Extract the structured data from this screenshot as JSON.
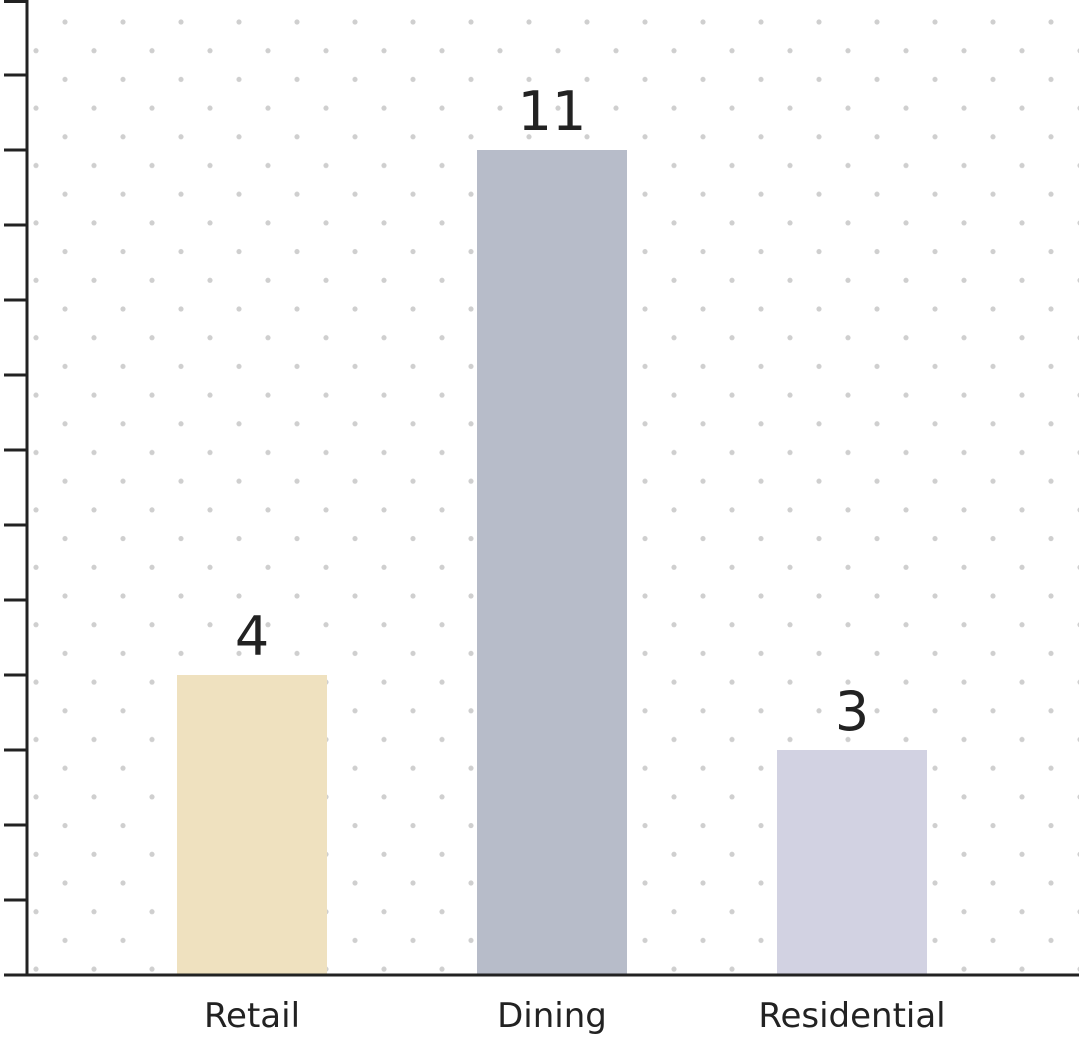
{
  "chart_data": {
    "type": "bar",
    "categories": [
      "Retail",
      "Dining",
      "Residential"
    ],
    "values": [
      4,
      11,
      3
    ],
    "colors": [
      "#efe1bf",
      "#b7bcc9",
      "#d2d2e2"
    ],
    "ylim": [
      0,
      13
    ],
    "yticks": [
      0,
      1,
      2,
      3,
      4,
      5,
      6,
      7,
      8,
      9,
      10,
      11,
      12,
      13
    ]
  }
}
